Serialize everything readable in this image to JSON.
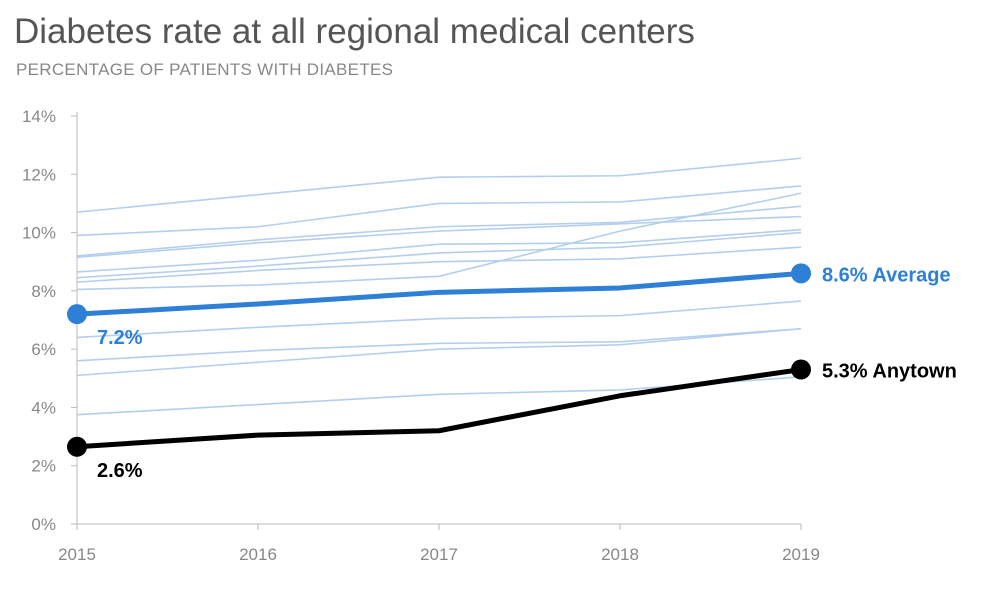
{
  "chart_data": {
    "type": "line",
    "title": "Diabetes rate at all regional medical centers",
    "subtitle": "PERCENTAGE OF PATIENTS WITH DIABETES",
    "x": [
      2015,
      2016,
      2017,
      2018,
      2019
    ],
    "x_tick_labels": [
      "2015",
      "2016",
      "2017",
      "2018",
      "2019"
    ],
    "ylim": [
      0,
      14
    ],
    "y_ticks": [
      0,
      2,
      4,
      6,
      8,
      10,
      12,
      14
    ],
    "y_tick_labels": [
      "0%",
      "2%",
      "4%",
      "6%",
      "8%",
      "10%",
      "12%",
      "14%"
    ],
    "grid": false,
    "colors": {
      "background_series": "#b3cfed",
      "average": "#2e7fd6",
      "anytown": "#000000",
      "axis": "#bbbbbb",
      "tick_text": "#888888"
    },
    "series": [
      {
        "values": [
          10.7,
          11.3,
          11.9,
          11.95,
          12.55
        ]
      },
      {
        "values": [
          9.9,
          10.2,
          11.0,
          11.05,
          11.6
        ]
      },
      {
        "values": [
          9.2,
          9.75,
          10.2,
          10.35,
          10.9
        ]
      },
      {
        "values": [
          9.15,
          9.65,
          10.05,
          10.3,
          10.55
        ]
      },
      {
        "values": [
          8.65,
          9.05,
          9.6,
          9.65,
          10.1
        ]
      },
      {
        "values": [
          8.45,
          8.85,
          9.3,
          9.5,
          10.0
        ]
      },
      {
        "values": [
          8.3,
          8.7,
          9.0,
          9.1,
          9.5
        ]
      },
      {
        "values": [
          8.05,
          8.2,
          8.5,
          10.05,
          11.35
        ]
      },
      {
        "name": "Average",
        "highlight": "average",
        "values": [
          7.2,
          7.55,
          7.95,
          8.1,
          8.6
        ],
        "start_label": "7.2%",
        "end_label": "8.6% Average"
      },
      {
        "values": [
          6.4,
          6.75,
          7.05,
          7.15,
          7.65
        ]
      },
      {
        "values": [
          5.6,
          5.95,
          6.2,
          6.25,
          6.7
        ]
      },
      {
        "values": [
          5.1,
          5.55,
          6.0,
          6.15,
          6.7
        ]
      },
      {
        "values": [
          3.75,
          4.1,
          4.45,
          4.6,
          5.05
        ]
      },
      {
        "name": "Anytown",
        "highlight": "anytown",
        "values": [
          2.65,
          3.05,
          3.2,
          4.4,
          5.3
        ],
        "start_label": "2.6%",
        "end_label": "5.3% Anytown"
      }
    ]
  }
}
